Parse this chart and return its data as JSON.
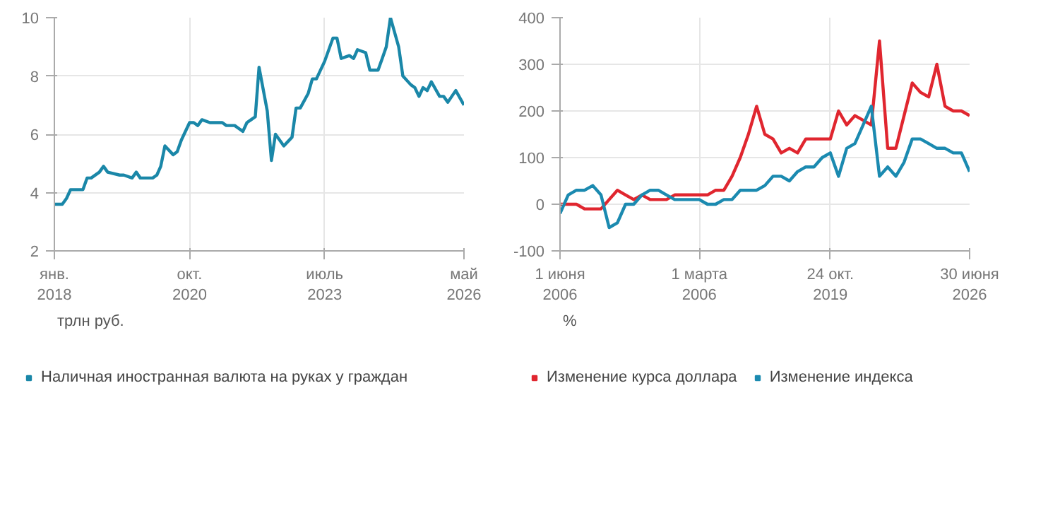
{
  "chart_data": [
    {
      "type": "line",
      "annotations": [
        "трлн руб."
      ],
      "grid": true,
      "legend": "bottom",
      "line_style": "solid",
      "x": [
        "2018-01",
        "2018-03",
        "2018-04",
        "2018-05",
        "2018-07",
        "2018-08",
        "2018-09",
        "2018-10",
        "2018-12",
        "2019-01",
        "2019-02",
        "2019-05",
        "2019-06",
        "2019-08",
        "2019-09",
        "2019-10",
        "2019-11",
        "2020-01",
        "2020-02",
        "2020-03",
        "2020-04",
        "2020-06",
        "2020-07",
        "2020-08",
        "2020-10",
        "2020-11",
        "2020-12",
        "2021-01",
        "2021-03",
        "2021-06",
        "2021-07",
        "2021-09",
        "2021-10",
        "2021-11",
        "2021-12",
        "2022-01",
        "2022-02",
        "2022-03",
        "2022-05",
        "2022-06",
        "2022-07",
        "2022-09",
        "2022-11",
        "2022-12",
        "2023-01",
        "2023-03",
        "2023-04",
        "2023-05",
        "2023-07",
        "2023-09",
        "2023-10",
        "2023-11",
        "2024-01",
        "2024-02",
        "2024-03",
        "2024-05",
        "2024-06",
        "2024-08",
        "2024-09",
        "2024-10",
        "2024-11",
        "2025-01",
        "2025-02",
        "2025-04",
        "2025-05",
        "2025-06",
        "2025-07",
        "2025-08",
        "2025-09",
        "2025-11",
        "2025-12",
        "2026-01",
        "2026-03",
        "2026-05"
      ],
      "series": [
        {
          "name": "Наличная иностранная валюта на руках у граждан",
          "color": "#1a87a8",
          "values": [
            3.6,
            3.6,
            3.8,
            4.1,
            4.1,
            4.1,
            4.5,
            4.5,
            4.7,
            4.9,
            4.7,
            4.6,
            4.6,
            4.5,
            4.7,
            4.5,
            4.5,
            4.5,
            4.6,
            4.9,
            5.6,
            5.3,
            5.4,
            5.8,
            6.4,
            6.4,
            6.3,
            6.5,
            6.4,
            6.4,
            6.3,
            6.3,
            6.2,
            6.1,
            6.4,
            6.5,
            6.6,
            8.3,
            6.8,
            5.1,
            6.0,
            5.6,
            5.9,
            6.9,
            6.9,
            7.4,
            7.9,
            7.9,
            8.5,
            9.3,
            9.3,
            8.6,
            8.7,
            8.6,
            8.9,
            8.8,
            8.2,
            8.2,
            8.6,
            9.0,
            10.0,
            9.0,
            8.0,
            7.7,
            7.6,
            7.3,
            7.6,
            7.5,
            7.8,
            7.3,
            7.3,
            7.1,
            7.5,
            7.0
          ]
        }
      ],
      "xlim": [
        "2018-01",
        "2026-05"
      ],
      "xticks": [
        {
          "value": "2018-01",
          "label": "янв.\n2018"
        },
        {
          "value": "2020-10",
          "label": "окт.\n2020"
        },
        {
          "value": "2023-07",
          "label": "июль\n2023"
        },
        {
          "value": "2026-05",
          "label": "май\n2026"
        }
      ],
      "ylim": [
        2,
        10
      ],
      "yticks": [
        2,
        4,
        6,
        8,
        10
      ]
    },
    {
      "type": "line",
      "annotations": [
        "%"
      ],
      "grid": true,
      "legend": "bottom",
      "line_style": "solid",
      "categories": [
        "1 июня\n2006",
        null,
        null,
        null,
        null,
        null,
        null,
        null,
        null,
        null,
        null,
        null,
        null,
        null,
        null,
        null,
        null,
        "1 марта\n2006",
        null,
        null,
        null,
        null,
        null,
        null,
        null,
        null,
        null,
        null,
        null,
        null,
        null,
        null,
        null,
        "24 окт.\n2019",
        null,
        null,
        null,
        null,
        null,
        null,
        null,
        null,
        null,
        null,
        null,
        null,
        null,
        null,
        null,
        null,
        "30 июня\n2026"
      ],
      "series": [
        {
          "name": "Изменение курса доллара",
          "color": "#e0262f",
          "values": [
            0,
            0,
            0,
            -10,
            -10,
            -10,
            10,
            30,
            20,
            10,
            20,
            10,
            10,
            10,
            20,
            20,
            20,
            20,
            20,
            30,
            30,
            60,
            100,
            150,
            210,
            150,
            140,
            110,
            120,
            110,
            140,
            140,
            140,
            140,
            200,
            170,
            190,
            180,
            170,
            350,
            120,
            120,
            190,
            260,
            240,
            230,
            300,
            210,
            200,
            200,
            190
          ]
        },
        {
          "name": "Изменение индекса",
          "color": "#1b8ab0",
          "values": [
            -20,
            20,
            30,
            30,
            40,
            20,
            -50,
            -40,
            0,
            0,
            20,
            30,
            30,
            20,
            10,
            10,
            10,
            10,
            0,
            0,
            10,
            10,
            30,
            30,
            30,
            40,
            60,
            60,
            50,
            70,
            80,
            80,
            100,
            110,
            60,
            120,
            130,
            170,
            210,
            60,
            80,
            60,
            90,
            140,
            140,
            130,
            120,
            120,
            110,
            110,
            70
          ]
        }
      ],
      "ylim": [
        -100,
        400
      ],
      "yticks": [
        -100,
        0,
        100,
        200,
        300,
        400
      ]
    }
  ]
}
